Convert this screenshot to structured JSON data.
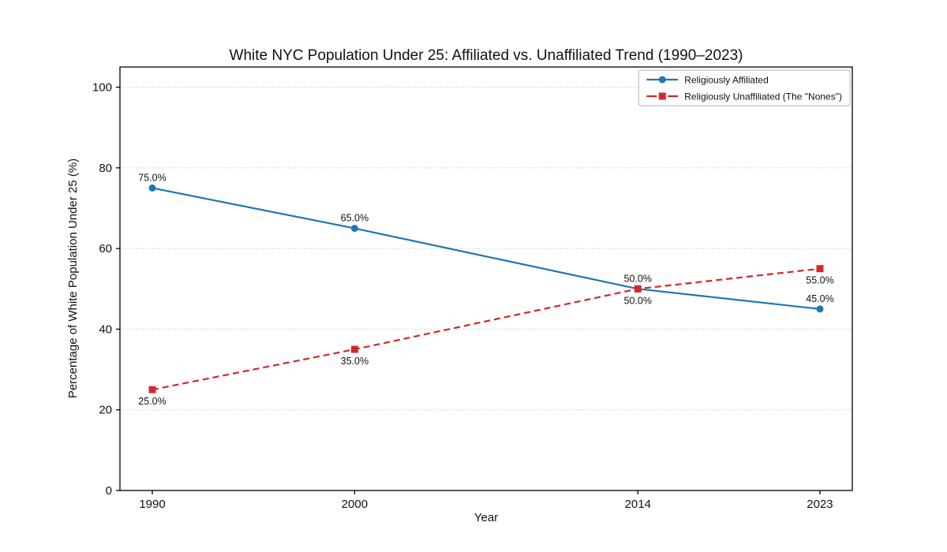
{
  "chart_data": {
    "type": "line",
    "title": "White NYC Population Under 25: Affiliated vs. Unaffiliated Trend (1990–2023)",
    "xlabel": "Year",
    "ylabel": "Percentage of White Population Under 25 (%)",
    "x": [
      1990,
      2000,
      2014,
      2023
    ],
    "xlim": [
      1988.4,
      2024.6
    ],
    "ylim": [
      0,
      105
    ],
    "yticks": [
      0,
      20,
      40,
      60,
      80,
      100
    ],
    "ytick_labels": [
      "0",
      "20",
      "40",
      "60",
      "80",
      "100"
    ],
    "xticks": [
      1990,
      2000,
      2014,
      2023
    ],
    "xtick_labels": [
      "1990",
      "2000",
      "2014",
      "2023"
    ],
    "grid": "horizontal-dotted",
    "legend_position": "top-right-inside",
    "series": [
      {
        "name": "Religiously Affiliated",
        "color": "#1f77b4",
        "line_style": "solid",
        "marker": "circle",
        "values": [
          75.0,
          65.0,
          50.0,
          45.0
        ],
        "labels": [
          "75.0%",
          "65.0%",
          "50.0%",
          "45.0%"
        ],
        "label_position": "above"
      },
      {
        "name": "Religiously Unaffiliated (The \"Nones\")",
        "color": "#d62728",
        "line_style": "dashed",
        "marker": "square",
        "values": [
          25.0,
          35.0,
          50.0,
          55.0
        ],
        "labels": [
          "25.0%",
          "35.0%",
          "50.0%",
          "55.0%"
        ],
        "label_position": "below"
      }
    ]
  }
}
